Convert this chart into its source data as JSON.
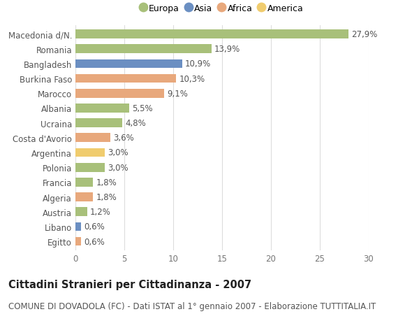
{
  "categories": [
    "Macedonia d/N.",
    "Romania",
    "Bangladesh",
    "Burkina Faso",
    "Marocco",
    "Albania",
    "Ucraina",
    "Costa d'Avorio",
    "Argentina",
    "Polonia",
    "Francia",
    "Algeria",
    "Austria",
    "Libano",
    "Egitto"
  ],
  "values": [
    27.9,
    13.9,
    10.9,
    10.3,
    9.1,
    5.5,
    4.8,
    3.6,
    3.0,
    3.0,
    1.8,
    1.8,
    1.2,
    0.6,
    0.6
  ],
  "labels": [
    "27,9%",
    "13,9%",
    "10,9%",
    "10,3%",
    "9,1%",
    "5,5%",
    "4,8%",
    "3,6%",
    "3,0%",
    "3,0%",
    "1,8%",
    "1,8%",
    "1,2%",
    "0,6%",
    "0,6%"
  ],
  "continents": [
    "Europa",
    "Europa",
    "Asia",
    "Africa",
    "Africa",
    "Europa",
    "Europa",
    "Africa",
    "America",
    "Europa",
    "Europa",
    "Africa",
    "Europa",
    "Asia",
    "Africa"
  ],
  "colors": {
    "Europa": "#a8c07a",
    "Asia": "#6b8fc2",
    "Africa": "#e8a87c",
    "America": "#f0cc6e"
  },
  "xlim": [
    0,
    30
  ],
  "xticks": [
    0,
    5,
    10,
    15,
    20,
    25,
    30
  ],
  "background_color": "#ffffff",
  "grid_color": "#dddddd",
  "title": "Cittadini Stranieri per Cittadinanza - 2007",
  "subtitle": "COMUNE DI DOVADOLA (FC) - Dati ISTAT al 1° gennaio 2007 - Elaborazione TUTTITALIA.IT",
  "bar_height": 0.6,
  "label_fontsize": 8.5,
  "tick_fontsize": 8.5,
  "title_fontsize": 10.5,
  "subtitle_fontsize": 8.5,
  "legend_entries": [
    "Europa",
    "Asia",
    "Africa",
    "America"
  ]
}
